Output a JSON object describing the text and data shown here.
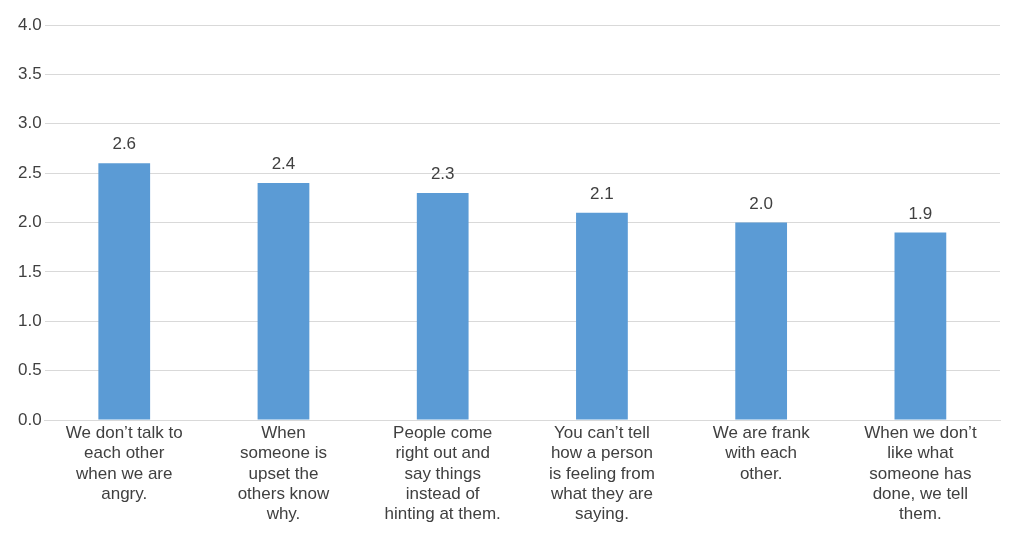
{
  "chart_data": {
    "type": "bar",
    "categories": [
      "We don’t talk to each other when we are angry.",
      "When someone is upset the others know why.",
      "People come right out and say things instead of hinting at them.",
      "You can’t tell how a person is feeling from what they are saying.",
      "We are frank with each other.",
      "When we don’t like what someone has done, we tell them."
    ],
    "values": [
      2.6,
      2.4,
      2.3,
      2.1,
      2.0,
      1.9
    ],
    "value_labels": [
      "2.6",
      "2.4",
      "2.3",
      "2.1",
      "2.0",
      "1.9"
    ],
    "color": "#5b9bd5",
    "ylim": [
      0,
      4
    ],
    "yticks": [
      {
        "value": 0,
        "label": "0.0"
      },
      {
        "value": 0.5,
        "label": "0.5"
      },
      {
        "value": 1,
        "label": "1.0"
      },
      {
        "value": 1.5,
        "label": "1.5"
      },
      {
        "value": 2,
        "label": "2.0"
      },
      {
        "value": 2.5,
        "label": "2.5"
      },
      {
        "value": 3,
        "label": "3.0"
      },
      {
        "value": 3.5,
        "label": "3.5"
      },
      {
        "value": 4,
        "label": "4.0"
      }
    ],
    "grid": "y",
    "legend": false
  }
}
